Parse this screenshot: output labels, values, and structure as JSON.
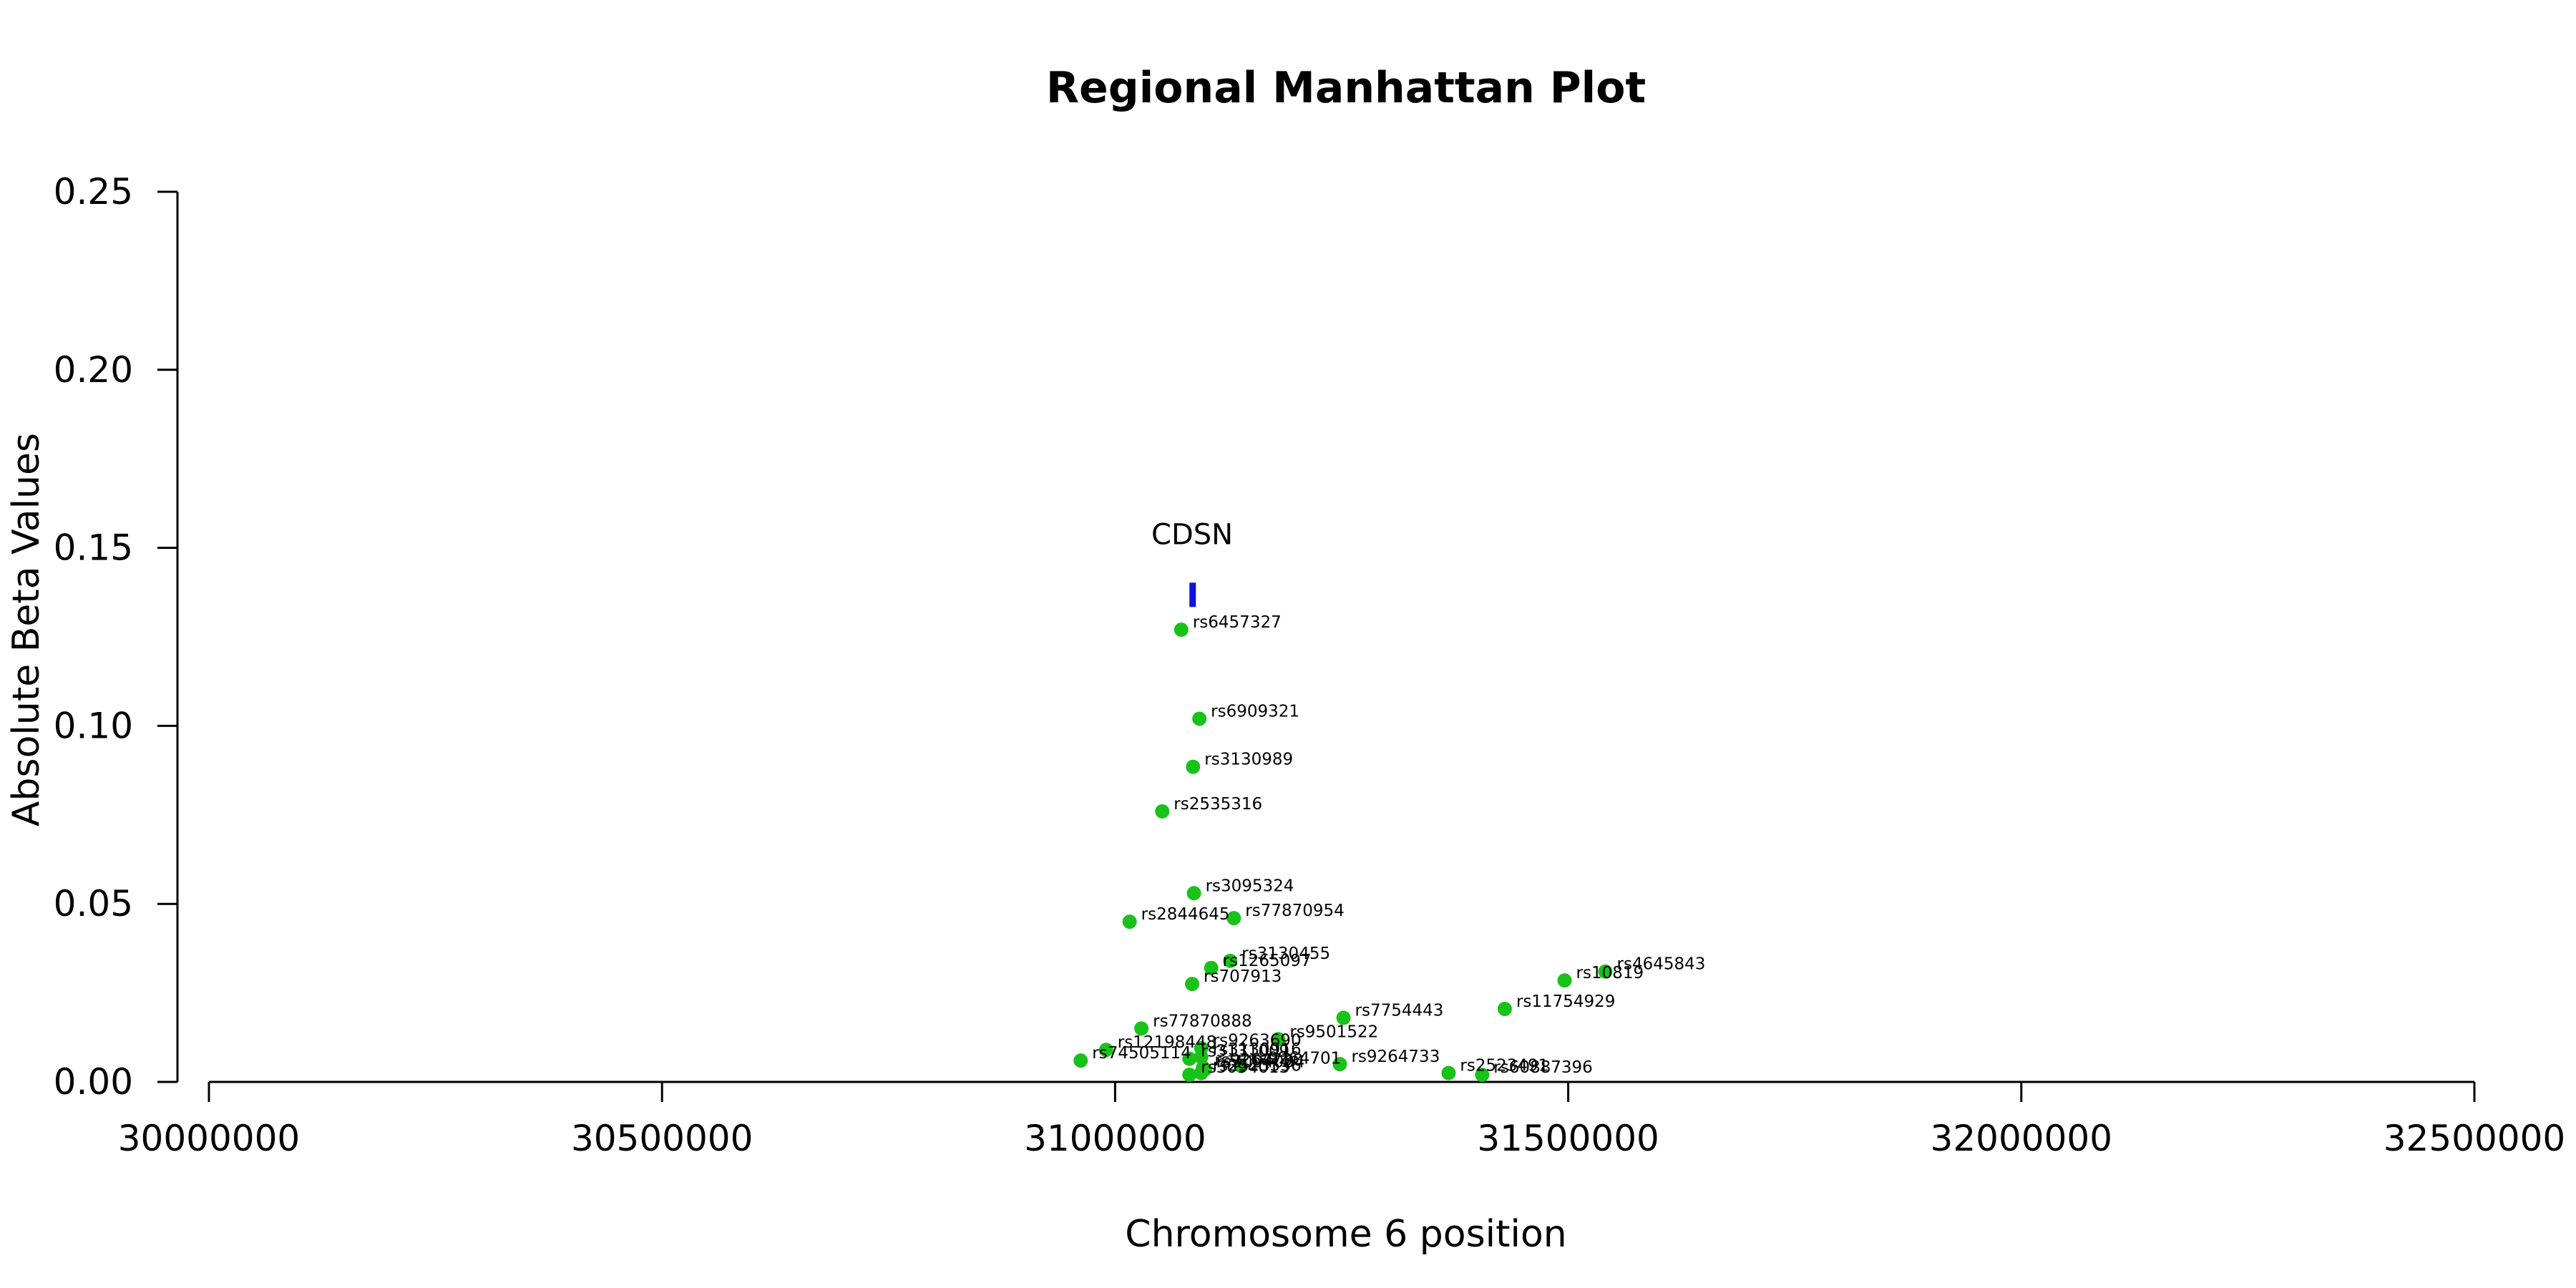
{
  "chart_data": {
    "type": "scatter",
    "title": "Regional Manhattan Plot",
    "xlabel": "Chromosome 6 position",
    "ylabel": "Absolute Beta Values",
    "xlim": [
      30000000,
      32500000
    ],
    "ylim": [
      0,
      0.25
    ],
    "x_ticks": [
      "30000000",
      "30500000",
      "31000000",
      "31500000",
      "32000000",
      "32500000"
    ],
    "y_ticks": [
      "0.00",
      "0.05",
      "0.10",
      "0.15",
      "0.20",
      "0.25"
    ],
    "grid": false,
    "point_color": "#19c219",
    "gene_color": "#1111dd",
    "genes": [
      {
        "name": "CDSN",
        "start": 31082000,
        "end": 31088000,
        "y": 0.137
      }
    ],
    "points": [
      {
        "label": "rs6457327",
        "x": 31073000,
        "y": 0.127
      },
      {
        "label": "rs6909321",
        "x": 31093000,
        "y": 0.102
      },
      {
        "label": "rs3130989",
        "x": 31086000,
        "y": 0.0885
      },
      {
        "label": "rs2535316",
        "x": 31052000,
        "y": 0.076
      },
      {
        "label": "rs3095324",
        "x": 31087000,
        "y": 0.053
      },
      {
        "label": "rs2844645",
        "x": 31016000,
        "y": 0.045
      },
      {
        "label": "rs77870954",
        "x": 31131000,
        "y": 0.046
      },
      {
        "label": "rs3130455",
        "x": 31127000,
        "y": 0.034
      },
      {
        "label": "rs1265097",
        "x": 31106000,
        "y": 0.032
      },
      {
        "label": "rs707913",
        "x": 31085000,
        "y": 0.0275
      },
      {
        "label": "rs4645843",
        "x": 31541000,
        "y": 0.031
      },
      {
        "label": "rs10819",
        "x": 31496000,
        "y": 0.0285
      },
      {
        "label": "rs11754929",
        "x": 31430000,
        "y": 0.0205
      },
      {
        "label": "rs7754443",
        "x": 31252000,
        "y": 0.018
      },
      {
        "label": "rs77870888",
        "x": 31029000,
        "y": 0.015
      },
      {
        "label": "rs9501522",
        "x": 31180000,
        "y": 0.012
      },
      {
        "label": "rs12198448",
        "x": 30990000,
        "y": 0.009
      },
      {
        "label": "rs9263690",
        "x": 31095000,
        "y": 0.0095
      },
      {
        "label": "rs74505114",
        "x": 30962000,
        "y": 0.006
      },
      {
        "label": "rs3130916",
        "x": 31095000,
        "y": 0.007
      },
      {
        "label": "rs3131009",
        "x": 31082000,
        "y": 0.0065
      },
      {
        "label": "rs9264701",
        "x": 31139000,
        "y": 0.0045
      },
      {
        "label": "rs9264733",
        "x": 31248000,
        "y": 0.005
      },
      {
        "label": "rs9264730",
        "x": 31097000,
        "y": 0.004
      },
      {
        "label": "rs3094004",
        "x": 31099000,
        "y": 0.0035
      },
      {
        "label": "rs2523536",
        "x": 31095000,
        "y": 0.0025
      },
      {
        "label": "rs3094013",
        "x": 31082000,
        "y": 0.002
      },
      {
        "label": "rs2523491",
        "x": 31368000,
        "y": 0.0025
      },
      {
        "label": "rs60887396",
        "x": 31405000,
        "y": 0.002
      }
    ]
  }
}
